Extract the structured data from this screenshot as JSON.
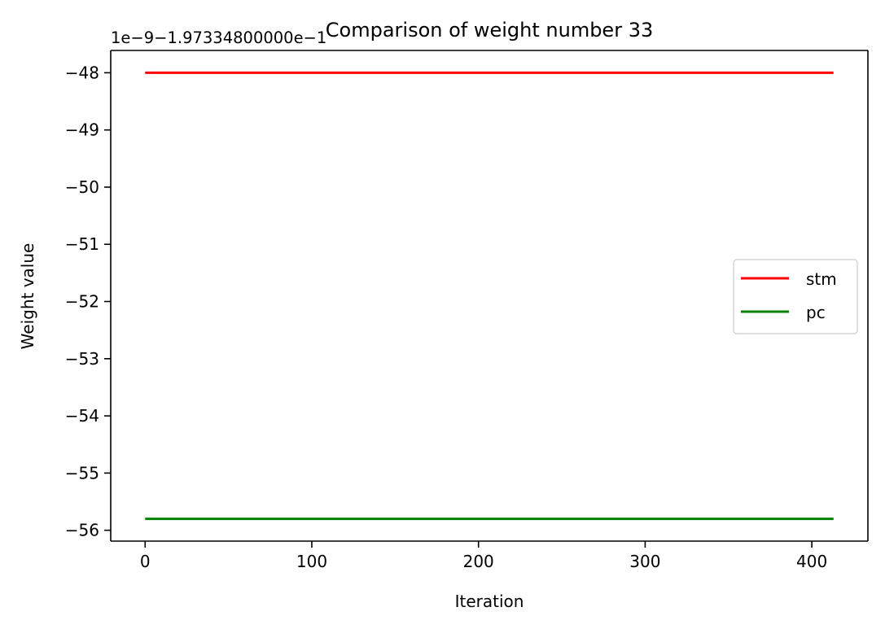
{
  "chart_data": {
    "type": "line",
    "title": "Comparison of weight number 33",
    "xlabel": "Iteration",
    "ylabel": "Weight value",
    "offset_text": "1e−9−1.97334800000e−1",
    "xlim": [
      -20.65,
      433.65
    ],
    "ylim": [
      -56.19,
      -47.61
    ],
    "xticks": [
      0,
      100,
      200,
      300,
      400
    ],
    "xtick_labels": [
      "0",
      "100",
      "200",
      "300",
      "400"
    ],
    "yticks": [
      -48,
      -49,
      -50,
      -51,
      -52,
      -53,
      -54,
      -55,
      -56
    ],
    "ytick_labels": [
      "−48",
      "−49",
      "−50",
      "−51",
      "−52",
      "−53",
      "−54",
      "−55",
      "−56"
    ],
    "grid": false,
    "legend": {
      "placement": "center-right"
    },
    "series": [
      {
        "name": "stm",
        "color": "#ff0000",
        "x": [
          0,
          413
        ],
        "y": [
          -48.0,
          -48.0
        ]
      },
      {
        "name": "pc",
        "color": "#008000",
        "x": [
          0,
          413
        ],
        "y": [
          -55.8,
          -55.8
        ]
      }
    ]
  }
}
